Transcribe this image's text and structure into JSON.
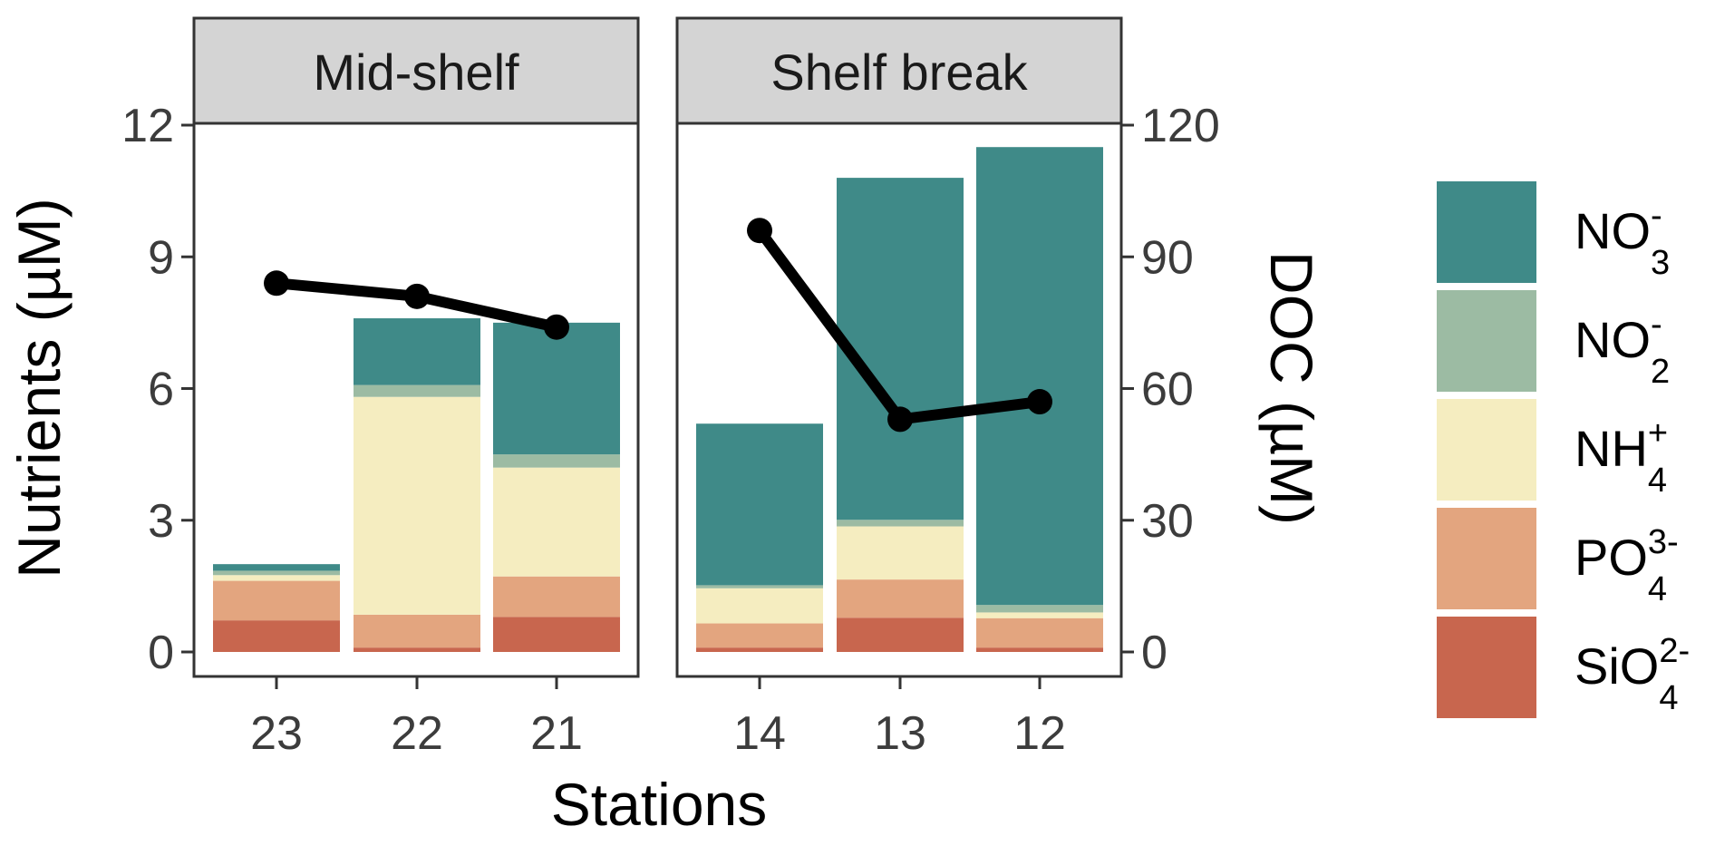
{
  "chart_data": {
    "type": "bar",
    "title": "",
    "xlabel": "Stations",
    "ylabel": "Nutrients (µM)",
    "y2label": "DOC (µM)",
    "ylim": [
      0,
      12
    ],
    "y2lim": [
      0,
      120
    ],
    "yticks": [
      "0",
      "3",
      "6",
      "9",
      "12"
    ],
    "y2ticks": [
      "0",
      "30",
      "60",
      "90",
      "120"
    ],
    "grid": false,
    "legend_position": "right",
    "panels": [
      {
        "name": "Mid-shelf",
        "stations": [
          "23",
          "22",
          "21"
        ],
        "doc": [
          84,
          81,
          74
        ]
      },
      {
        "name": "Shelf break",
        "stations": [
          "14",
          "13",
          "12"
        ],
        "doc": [
          96,
          53,
          57
        ]
      }
    ],
    "series": [
      {
        "key": "sio4",
        "name_base": "SiO",
        "name_sub": "4",
        "name_sup": "2-",
        "color": "#c8664e",
        "values": [
          [
            0.72,
            0.1,
            0.8
          ],
          [
            0.1,
            0.78,
            0.1
          ]
        ]
      },
      {
        "key": "po4",
        "name_base": "PO",
        "name_sub": "4",
        "name_sup": "3-",
        "color": "#e3a57f",
        "values": [
          [
            0.9,
            0.75,
            0.92
          ],
          [
            0.55,
            0.87,
            0.67
          ]
        ]
      },
      {
        "key": "nh4",
        "name_base": "NH",
        "name_sub": "4",
        "name_sup": "+",
        "color": "#f5edc0",
        "values": [
          [
            0.13,
            4.96,
            2.48
          ],
          [
            0.8,
            1.21,
            0.13
          ]
        ]
      },
      {
        "key": "no2",
        "name_base": "NO",
        "name_sub": "2",
        "name_sup": "-",
        "color": "#9cbba3",
        "values": [
          [
            0.1,
            0.27,
            0.3
          ],
          [
            0.07,
            0.15,
            0.17
          ]
        ]
      },
      {
        "key": "no3",
        "name_base": "NO",
        "name_sub": "3",
        "name_sup": "-",
        "color": "#3f8a88",
        "values": [
          [
            0.15,
            1.52,
            3.0
          ],
          [
            3.68,
            7.79,
            10.43
          ]
        ]
      }
    ],
    "legend_order": [
      "no3",
      "no2",
      "nh4",
      "po4",
      "sio4"
    ],
    "line": {
      "color": "#000000"
    }
  }
}
